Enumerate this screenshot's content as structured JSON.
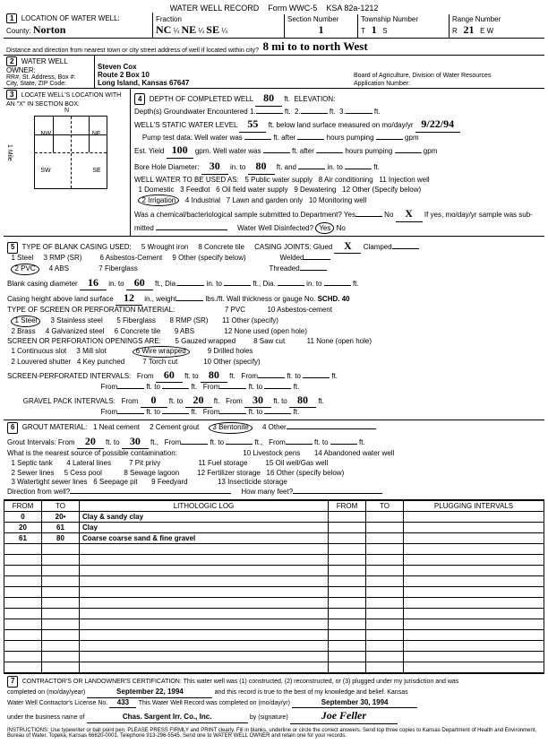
{
  "form": {
    "title": "WATER WELL RECORD",
    "form_no": "Form WWC-5",
    "ksa": "KSA 82a-1212"
  },
  "header": {
    "location_label": "LOCATION OF WATER WELL:",
    "county_label": "County:",
    "county": "Norton",
    "fraction_label": "Fraction",
    "frac1": "NC",
    "q1": "¼",
    "frac2": "NE",
    "q2": "¼",
    "frac3": "SE",
    "q3": "¼",
    "section_label": "Section Number",
    "section": "1",
    "township_label": "Township Number",
    "township_t": "T",
    "township": "1",
    "township_s": "S",
    "range_label": "Range Number",
    "range_r": "R",
    "range": "21",
    "range_ew": "E W",
    "dist_label": "Distance and direction from nearest town or city street address of well if located within city?",
    "dist": "8 mi to to north West"
  },
  "owner": {
    "label": "WATER WELL OWNER:",
    "addr_label": "RR#, St. Address, Box #:",
    "city_label": "City, State, ZIP Code:",
    "name": "Steven Cox",
    "addr": "Route 2 Box 10",
    "city": "Long Island, Kansas 67647",
    "board": "Board of Agriculture, Division of Water Resources",
    "app": "Application Number:"
  },
  "locate": {
    "label": "LOCATE WELL'S LOCATION WITH AN \"X\" IN SECTION BOX:",
    "nw": "NW",
    "ne": "NE",
    "sw": "SW",
    "se": "SE",
    "n": "N",
    "s": "S",
    "e": "E",
    "w": "W",
    "mile": "1 Mile"
  },
  "depth": {
    "label": "DEPTH OF COMPLETED WELL",
    "value": "80",
    "ft": "ft.",
    "elev": "ELEVATION:",
    "gw_label": "Depth(s) Groundwater Encountered",
    "one": "1.",
    "two": "2.",
    "three": "3.",
    "static_label": "WELL'S STATIC WATER LEVEL",
    "static": "55",
    "static_tail": "ft. below land surface measured on mo/day/yr",
    "static_date": "9/22/94",
    "pump_label": "Pump test data:",
    "ww_was": "Well water was",
    "after": "ft. after",
    "hours": "hours pumping",
    "gpm": "gpm",
    "est_label": "Est. Yield",
    "est": "100",
    "gpm2": "gpm.",
    "bore_label": "Bore Hole Diameter:",
    "bore": "30",
    "into": "in. to",
    "bore2": "80",
    "ftand": "ft. and",
    "use_label": "WELL WATER TO BE USED AS:",
    "u1": "1 Domestic",
    "u2": "2 Irrigation",
    "u3": "3 Feedlot",
    "u4": "4 Industrial",
    "u5": "5 Public water supply",
    "u6": "6 Oil field water supply",
    "u7": "7 Lawn and garden only",
    "u8": "8 Air conditioning",
    "u9": "9 Dewatering",
    "u10": "10 Monitoring well",
    "u11": "11 Injection well",
    "u12": "12 Other (Specify below)",
    "chem": "Was a chemical/bacteriological sample submitted to Department? Yes",
    "no": "No",
    "x": "X",
    "ifyes": "If yes, mo/day/yr sample was sub-",
    "mitted": "mitted",
    "disinf": "Water Well Disinfected?",
    "yes": "Yes",
    "no2": "No"
  },
  "casing": {
    "label": "TYPE OF BLANK CASING USED:",
    "c1": "1 Steel",
    "c2": "2 PVC",
    "c3": "3 RMP (SR)",
    "c4": "4 ABS",
    "c5": "5 Wrought iron",
    "c6": "6 Asbestos-Cement",
    "c7": "7 Fiberglass",
    "c8": "8 Concrete tile",
    "c9": "9 Other (specify below)",
    "joints": "CASING JOINTS: Glued",
    "x": "X",
    "clamped": "Clamped",
    "welded": "Welded",
    "threaded": "Threaded",
    "bcd_label": "Blank casing diameter",
    "bcd": "16",
    "into": "in. to",
    "bcd2": "60",
    "ftdia": "ft., Dia.",
    "height_label": "Casing height above land surface",
    "height": "12",
    "inw": "in., weight",
    "lbsft": "lbs./ft. Wall thickness or gauge No.",
    "gauge": "SCHD. 40",
    "screen_label": "TYPE OF SCREEN OR PERFORATION MATERIAL:",
    "s1": "1 Steel",
    "s2": "2 Brass",
    "s3": "3 Stainless steel",
    "s4": "4 Galvanized steel",
    "s5": "5 Fiberglass",
    "s6": "6 Concrete tile",
    "s7": "7 PVC",
    "s8": "8 RMP (SR)",
    "s9": "9 ABS",
    "s10": "10 Asbestos-cement",
    "s11": "11 Other (specify)",
    "s12": "12 None used (open hole)",
    "open_label": "SCREEN OR PERFORATION OPENINGS ARE:",
    "o1": "1 Continuous slot",
    "o2": "2 Louvered shutter",
    "o3": "3 Mill slot",
    "o4": "4 Key punched",
    "o5": "5 Gauzed wrapped",
    "o6": "6 Wire wrapped",
    "o7": "7 Torch cut",
    "o8": "8 Saw cut",
    "o9": "9 Drilled holes",
    "o10": "10 Other (specify)",
    "o11": "11 None (open hole)",
    "spi_label": "SCREEN-PERFORATED INTERVALS:",
    "from": "From",
    "to": "ft. to",
    "ft": "ft.",
    "spi_f1": "60",
    "spi_t1": "80",
    "gpi_label": "GRAVEL PACK INTERVALS:",
    "gpi_f1": "0",
    "gpi_t1": "20",
    "gpi_f2": "30",
    "gpi_t2": "80"
  },
  "grout": {
    "label": "GROUT MATERIAL:",
    "g1": "1 Neat cement",
    "g2": "2 Cement grout",
    "g3": "3 Bentonite",
    "g4": "4 Other",
    "int_label": "Grout Intervals: From",
    "gf": "20",
    "gt": "30",
    "contam": "What is the nearest source of possible contamination:",
    "p1": "1 Septic tank",
    "p2": "2 Sewer lines",
    "p3": "3 Watertight sewer lines",
    "p4": "4 Lateral lines",
    "p5": "5 Cess pool",
    "p6": "6 Seepage pit",
    "p7": "7 Pit privy",
    "p8": "8 Sewage lagoon",
    "p9": "9 Feedyard",
    "p10": "10 Livestock pens",
    "p11": "11 Fuel storage",
    "p12": "12 Fertilizer storage",
    "p13": "13 Insecticide storage",
    "p14": "14 Abandoned water well",
    "p15": "15 Oil well/Gas well",
    "p16": "16 Other (specify below)",
    "dir": "Direction from well?",
    "many": "How many feet?"
  },
  "lith": {
    "h_from": "FROM",
    "h_to": "TO",
    "h_log": "LITHOLOGIC LOG",
    "h_plug": "PLUGGING INTERVALS",
    "rows": [
      {
        "f": "0",
        "t": "20",
        "h": "•",
        "d": "Clay & sandy clay"
      },
      {
        "f": "20",
        "t": "61",
        "h": "",
        "d": "Clay"
      },
      {
        "f": "61",
        "t": "80",
        "h": "",
        "d": "Coarse coarse sand & fine gravel"
      }
    ]
  },
  "cert": {
    "text": "CONTRACTOR'S OR LANDOWNER'S CERTIFICATION: This water well was (1) constructed, (2) reconstructed, or (3) plugged under my jurisdiction and was",
    "comp": "completed on (mo/day/year)",
    "date1": "September 22, 1994",
    "rec": "and this record is true to the best of my knowledge and belief. Kansas",
    "lic": "Water Well Contractor's License No.",
    "licno": "433",
    "rec2": "This Water Well Record was completed on (mo/day/yr)",
    "date2": "September 30, 1994",
    "bus": "under the business name of",
    "company": "Chas. Sargent Irr. Co., Inc.",
    "by": "by (signature)",
    "inst": "INSTRUCTIONS: Use typewriter or ball point pen. PLEASE PRESS FIRMLY and PRINT clearly. Fill in blanks, underline or circle the correct answers. Send top three copies to Kansas Department of Health and Environment, Bureau of Water, Topeka, Kansas 66620-0001. Telephone 913-296-5545. Send one to WATER WELL OWNER and retain one for your records."
  }
}
